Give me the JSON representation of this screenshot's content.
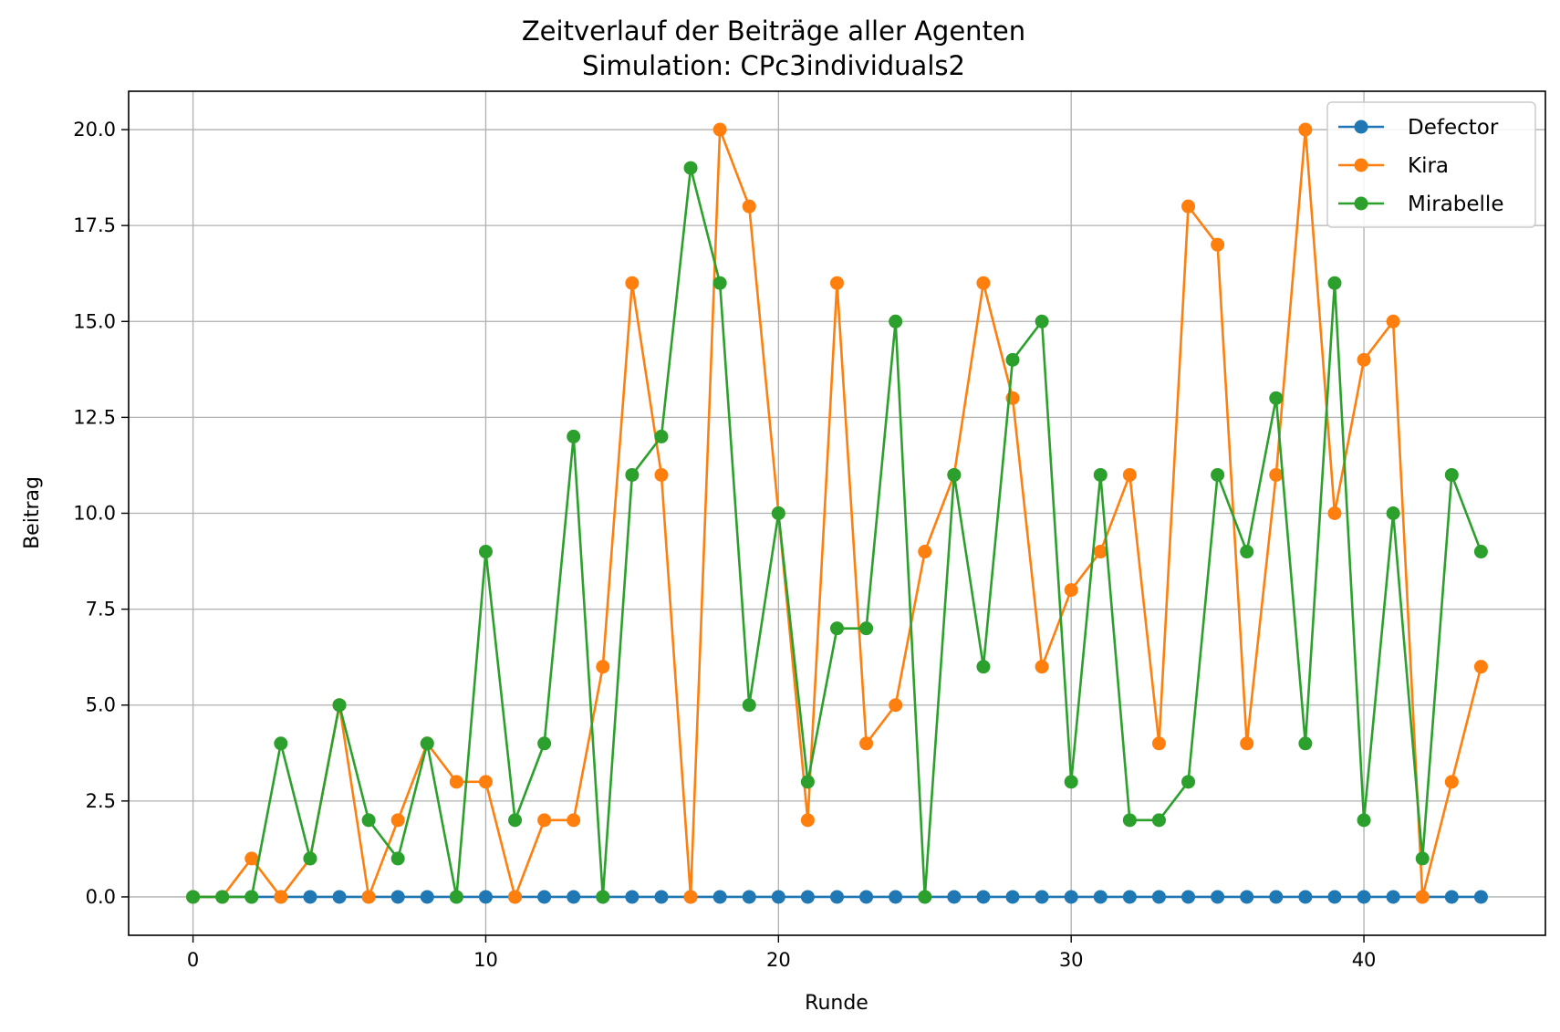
{
  "chart_data": {
    "type": "line",
    "title": "Zeitverlauf der Beiträge aller Agenten",
    "subtitle": "Simulation: CPc3individuals2",
    "xlabel": "Runde",
    "ylabel": "Beitrag",
    "xlim": [
      -2.2,
      46.2
    ],
    "ylim": [
      -1.0,
      21.0
    ],
    "xticks": [
      0,
      10,
      20,
      30,
      40
    ],
    "yticks": [
      0.0,
      2.5,
      5.0,
      7.5,
      10.0,
      12.5,
      15.0,
      17.5,
      20.0
    ],
    "xtick_labels": [
      "0",
      "10",
      "20",
      "30",
      "40"
    ],
    "ytick_labels": [
      "0.0",
      "2.5",
      "5.0",
      "7.5",
      "10.0",
      "12.5",
      "15.0",
      "17.5",
      "20.0"
    ],
    "grid": true,
    "legend_position": "top-right",
    "x": [
      0,
      1,
      2,
      3,
      4,
      5,
      6,
      7,
      8,
      9,
      10,
      11,
      12,
      13,
      14,
      15,
      16,
      17,
      18,
      19,
      20,
      21,
      22,
      23,
      24,
      25,
      26,
      27,
      28,
      29,
      30,
      31,
      32,
      33,
      34,
      35,
      36,
      37,
      38,
      39,
      40,
      41,
      42,
      43,
      44
    ],
    "series": [
      {
        "name": "Defector",
        "color": "#1f77b4",
        "values": [
          0,
          0,
          0,
          0,
          0,
          0,
          0,
          0,
          0,
          0,
          0,
          0,
          0,
          0,
          0,
          0,
          0,
          0,
          0,
          0,
          0,
          0,
          0,
          0,
          0,
          0,
          0,
          0,
          0,
          0,
          0,
          0,
          0,
          0,
          0,
          0,
          0,
          0,
          0,
          0,
          0,
          0,
          0,
          0,
          0
        ]
      },
      {
        "name": "Kira",
        "color": "#ff7f0e",
        "values": [
          0,
          0,
          1,
          0,
          1,
          5,
          0,
          2,
          4,
          3,
          3,
          0,
          2,
          2,
          6,
          16,
          11,
          0,
          20,
          18,
          10,
          2,
          16,
          4,
          5,
          9,
          11,
          16,
          13,
          6,
          8,
          9,
          11,
          4,
          18,
          17,
          4,
          11,
          20,
          10,
          14,
          15,
          0,
          3,
          6
        ]
      },
      {
        "name": "Mirabelle",
        "color": "#2ca02c",
        "values": [
          0,
          0,
          0,
          4,
          1,
          5,
          2,
          1,
          4,
          0,
          9,
          2,
          4,
          12,
          0,
          11,
          12,
          19,
          16,
          5,
          10,
          3,
          7,
          7,
          15,
          0,
          11,
          6,
          14,
          15,
          3,
          11,
          2,
          2,
          3,
          11,
          9,
          13,
          4,
          16,
          2,
          10,
          1,
          11,
          9
        ]
      }
    ]
  }
}
